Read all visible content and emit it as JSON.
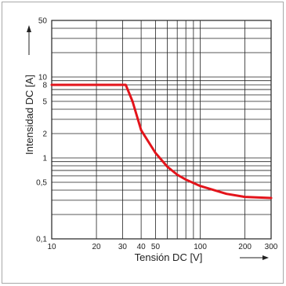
{
  "chart_data": {
    "type": "line",
    "xlabel": "Tensión DC  [V]",
    "ylabel": "Intensidad DC  [A]",
    "x_scale": "log",
    "y_scale": "log",
    "xlim": [
      10,
      300
    ],
    "ylim": [
      0.1,
      50
    ],
    "x_ticks": [
      {
        "value": 10,
        "label": "10"
      },
      {
        "value": 20,
        "label": "20"
      },
      {
        "value": 30,
        "label": "30"
      },
      {
        "value": 40,
        "label": "40"
      },
      {
        "value": 50,
        "label": "50"
      },
      {
        "value": 100,
        "label": "100"
      },
      {
        "value": 200,
        "label": "200"
      },
      {
        "value": 300,
        "label": "300"
      }
    ],
    "y_ticks": [
      {
        "value": 0.1,
        "label": "0,1"
      },
      {
        "value": 0.5,
        "label": "0,5"
      },
      {
        "value": 1,
        "label": "1"
      },
      {
        "value": 2,
        "label": "2"
      },
      {
        "value": 5,
        "label": "5"
      },
      {
        "value": 8,
        "label": "8"
      },
      {
        "value": 10,
        "label": "10"
      },
      {
        "value": 50,
        "label": "50"
      }
    ],
    "x_grid": [
      10,
      20,
      30,
      40,
      50,
      60,
      70,
      80,
      90,
      100,
      200,
      300
    ],
    "y_grid": [
      0.1,
      0.2,
      0.3,
      0.4,
      0.5,
      0.6,
      0.7,
      0.8,
      0.9,
      1,
      2,
      3,
      4,
      5,
      6,
      7,
      8,
      9,
      10,
      20,
      30,
      40,
      50
    ],
    "grid": true,
    "series": [
      {
        "color": "#e3141b",
        "points": [
          [
            10,
            8
          ],
          [
            30,
            8
          ],
          [
            31.5,
            8
          ],
          [
            35,
            5
          ],
          [
            40,
            2.2
          ],
          [
            50,
            1.15
          ],
          [
            60,
            0.78
          ],
          [
            70,
            0.62
          ],
          [
            80,
            0.54
          ],
          [
            100,
            0.45
          ],
          [
            150,
            0.36
          ],
          [
            200,
            0.33
          ],
          [
            300,
            0.32
          ]
        ]
      }
    ]
  }
}
